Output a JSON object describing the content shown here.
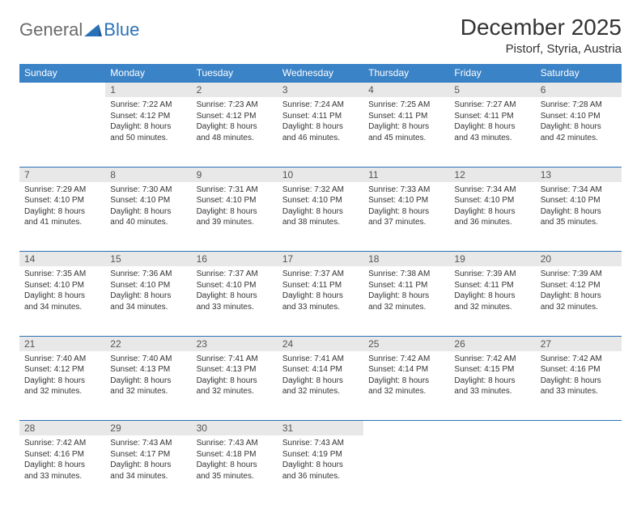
{
  "logo": {
    "general": "General",
    "blue": "Blue"
  },
  "title": "December 2025",
  "location": "Pistorf, Styria, Austria",
  "colors": {
    "header_bg": "#3b83c7",
    "daynum_bg": "#e8e8e8",
    "rule": "#2b71b8",
    "logo_gray": "#6b6b6b",
    "logo_blue": "#2b71b8",
    "text": "#333333"
  },
  "weekdays": [
    "Sunday",
    "Monday",
    "Tuesday",
    "Wednesday",
    "Thursday",
    "Friday",
    "Saturday"
  ],
  "weeks": [
    {
      "nums": [
        "",
        "1",
        "2",
        "3",
        "4",
        "5",
        "6"
      ],
      "cells": [
        null,
        {
          "sunrise": "Sunrise: 7:22 AM",
          "sunset": "Sunset: 4:12 PM",
          "day1": "Daylight: 8 hours",
          "day2": "and 50 minutes."
        },
        {
          "sunrise": "Sunrise: 7:23 AM",
          "sunset": "Sunset: 4:12 PM",
          "day1": "Daylight: 8 hours",
          "day2": "and 48 minutes."
        },
        {
          "sunrise": "Sunrise: 7:24 AM",
          "sunset": "Sunset: 4:11 PM",
          "day1": "Daylight: 8 hours",
          "day2": "and 46 minutes."
        },
        {
          "sunrise": "Sunrise: 7:25 AM",
          "sunset": "Sunset: 4:11 PM",
          "day1": "Daylight: 8 hours",
          "day2": "and 45 minutes."
        },
        {
          "sunrise": "Sunrise: 7:27 AM",
          "sunset": "Sunset: 4:11 PM",
          "day1": "Daylight: 8 hours",
          "day2": "and 43 minutes."
        },
        {
          "sunrise": "Sunrise: 7:28 AM",
          "sunset": "Sunset: 4:10 PM",
          "day1": "Daylight: 8 hours",
          "day2": "and 42 minutes."
        }
      ]
    },
    {
      "nums": [
        "7",
        "8",
        "9",
        "10",
        "11",
        "12",
        "13"
      ],
      "cells": [
        {
          "sunrise": "Sunrise: 7:29 AM",
          "sunset": "Sunset: 4:10 PM",
          "day1": "Daylight: 8 hours",
          "day2": "and 41 minutes."
        },
        {
          "sunrise": "Sunrise: 7:30 AM",
          "sunset": "Sunset: 4:10 PM",
          "day1": "Daylight: 8 hours",
          "day2": "and 40 minutes."
        },
        {
          "sunrise": "Sunrise: 7:31 AM",
          "sunset": "Sunset: 4:10 PM",
          "day1": "Daylight: 8 hours",
          "day2": "and 39 minutes."
        },
        {
          "sunrise": "Sunrise: 7:32 AM",
          "sunset": "Sunset: 4:10 PM",
          "day1": "Daylight: 8 hours",
          "day2": "and 38 minutes."
        },
        {
          "sunrise": "Sunrise: 7:33 AM",
          "sunset": "Sunset: 4:10 PM",
          "day1": "Daylight: 8 hours",
          "day2": "and 37 minutes."
        },
        {
          "sunrise": "Sunrise: 7:34 AM",
          "sunset": "Sunset: 4:10 PM",
          "day1": "Daylight: 8 hours",
          "day2": "and 36 minutes."
        },
        {
          "sunrise": "Sunrise: 7:34 AM",
          "sunset": "Sunset: 4:10 PM",
          "day1": "Daylight: 8 hours",
          "day2": "and 35 minutes."
        }
      ]
    },
    {
      "nums": [
        "14",
        "15",
        "16",
        "17",
        "18",
        "19",
        "20"
      ],
      "cells": [
        {
          "sunrise": "Sunrise: 7:35 AM",
          "sunset": "Sunset: 4:10 PM",
          "day1": "Daylight: 8 hours",
          "day2": "and 34 minutes."
        },
        {
          "sunrise": "Sunrise: 7:36 AM",
          "sunset": "Sunset: 4:10 PM",
          "day1": "Daylight: 8 hours",
          "day2": "and 34 minutes."
        },
        {
          "sunrise": "Sunrise: 7:37 AM",
          "sunset": "Sunset: 4:10 PM",
          "day1": "Daylight: 8 hours",
          "day2": "and 33 minutes."
        },
        {
          "sunrise": "Sunrise: 7:37 AM",
          "sunset": "Sunset: 4:11 PM",
          "day1": "Daylight: 8 hours",
          "day2": "and 33 minutes."
        },
        {
          "sunrise": "Sunrise: 7:38 AM",
          "sunset": "Sunset: 4:11 PM",
          "day1": "Daylight: 8 hours",
          "day2": "and 32 minutes."
        },
        {
          "sunrise": "Sunrise: 7:39 AM",
          "sunset": "Sunset: 4:11 PM",
          "day1": "Daylight: 8 hours",
          "day2": "and 32 minutes."
        },
        {
          "sunrise": "Sunrise: 7:39 AM",
          "sunset": "Sunset: 4:12 PM",
          "day1": "Daylight: 8 hours",
          "day2": "and 32 minutes."
        }
      ]
    },
    {
      "nums": [
        "21",
        "22",
        "23",
        "24",
        "25",
        "26",
        "27"
      ],
      "cells": [
        {
          "sunrise": "Sunrise: 7:40 AM",
          "sunset": "Sunset: 4:12 PM",
          "day1": "Daylight: 8 hours",
          "day2": "and 32 minutes."
        },
        {
          "sunrise": "Sunrise: 7:40 AM",
          "sunset": "Sunset: 4:13 PM",
          "day1": "Daylight: 8 hours",
          "day2": "and 32 minutes."
        },
        {
          "sunrise": "Sunrise: 7:41 AM",
          "sunset": "Sunset: 4:13 PM",
          "day1": "Daylight: 8 hours",
          "day2": "and 32 minutes."
        },
        {
          "sunrise": "Sunrise: 7:41 AM",
          "sunset": "Sunset: 4:14 PM",
          "day1": "Daylight: 8 hours",
          "day2": "and 32 minutes."
        },
        {
          "sunrise": "Sunrise: 7:42 AM",
          "sunset": "Sunset: 4:14 PM",
          "day1": "Daylight: 8 hours",
          "day2": "and 32 minutes."
        },
        {
          "sunrise": "Sunrise: 7:42 AM",
          "sunset": "Sunset: 4:15 PM",
          "day1": "Daylight: 8 hours",
          "day2": "and 33 minutes."
        },
        {
          "sunrise": "Sunrise: 7:42 AM",
          "sunset": "Sunset: 4:16 PM",
          "day1": "Daylight: 8 hours",
          "day2": "and 33 minutes."
        }
      ]
    },
    {
      "nums": [
        "28",
        "29",
        "30",
        "31",
        "",
        "",
        ""
      ],
      "cells": [
        {
          "sunrise": "Sunrise: 7:42 AM",
          "sunset": "Sunset: 4:16 PM",
          "day1": "Daylight: 8 hours",
          "day2": "and 33 minutes."
        },
        {
          "sunrise": "Sunrise: 7:43 AM",
          "sunset": "Sunset: 4:17 PM",
          "day1": "Daylight: 8 hours",
          "day2": "and 34 minutes."
        },
        {
          "sunrise": "Sunrise: 7:43 AM",
          "sunset": "Sunset: 4:18 PM",
          "day1": "Daylight: 8 hours",
          "day2": "and 35 minutes."
        },
        {
          "sunrise": "Sunrise: 7:43 AM",
          "sunset": "Sunset: 4:19 PM",
          "day1": "Daylight: 8 hours",
          "day2": "and 36 minutes."
        },
        null,
        null,
        null
      ]
    }
  ]
}
